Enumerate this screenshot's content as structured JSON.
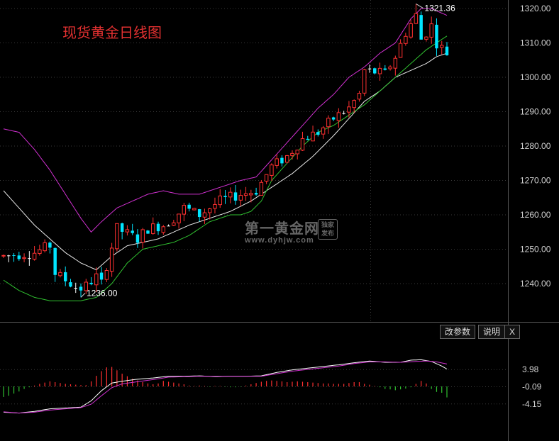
{
  "page": {
    "title": "现货黄金日线图",
    "buttons": {
      "params": "改参数",
      "help": "说明",
      "close": "X"
    },
    "watermark": {
      "name": "第一黄金网",
      "url": "www.dyhjw.com",
      "badge": "独家发布"
    }
  },
  "colors": {
    "background": "#000000",
    "up": "#ff3030",
    "down": "#00e5ff",
    "doji": "#ffffff",
    "boll_upper": "#d030d0",
    "boll_mid": "#e8e8e8",
    "boll_lower": "#30c030",
    "macd_dif": "#ffffff",
    "macd_dea": "#d030d0",
    "hist_pos": "#ff3030",
    "hist_neg": "#30c030",
    "grid": "#3a3a3a",
    "axis_text": "#d0d0d0"
  },
  "chart_data": [
    {
      "type": "candlestick",
      "title": "现货黄金日线图",
      "xlabel": "",
      "ylabel": "",
      "ylim": [
        1230,
        1322
      ],
      "yticks": [
        "1320.00",
        "1310.00",
        "1300.00",
        "1290.00",
        "1280.00",
        "1270.00",
        "1260.00",
        "1250.00",
        "1240.00"
      ],
      "annotations": [
        {
          "text": "1321.36",
          "x": 80,
          "y": 1321.36
        },
        {
          "text": "1236.00",
          "x": 15,
          "y": 1236.0
        }
      ],
      "anchors": [
        [
          0,
          1248
        ],
        [
          6,
          1249
        ],
        [
          9,
          1251
        ],
        [
          10,
          1243
        ],
        [
          13,
          1240
        ],
        [
          15,
          1238
        ],
        [
          18,
          1242
        ],
        [
          19,
          1240
        ],
        [
          22,
          1256
        ],
        [
          26,
          1253
        ],
        [
          28,
          1256
        ],
        [
          31,
          1257
        ],
        [
          33,
          1259
        ],
        [
          35,
          1262
        ],
        [
          38,
          1260
        ],
        [
          42,
          1264
        ],
        [
          46,
          1266
        ],
        [
          49,
          1267
        ],
        [
          52,
          1274
        ],
        [
          55,
          1277
        ],
        [
          58,
          1282
        ],
        [
          61,
          1284
        ],
        [
          64,
          1288
        ],
        [
          67,
          1291
        ],
        [
          69,
          1295
        ],
        [
          70,
          1302
        ],
        [
          74,
          1301
        ],
        [
          76,
          1306
        ],
        [
          78,
          1313
        ],
        [
          80,
          1318
        ],
        [
          81,
          1311
        ],
        [
          83,
          1315
        ],
        [
          84,
          1310
        ],
        [
          86,
          1307
        ]
      ],
      "candle_count": 87,
      "bollinger": {
        "upper": [
          [
            0,
            1285
          ],
          [
            3,
            1284
          ],
          [
            6,
            1279
          ],
          [
            9,
            1273
          ],
          [
            12,
            1266
          ],
          [
            15,
            1259
          ],
          [
            17,
            1255
          ],
          [
            19,
            1258
          ],
          [
            22,
            1262
          ],
          [
            25,
            1264
          ],
          [
            28,
            1266
          ],
          [
            31,
            1267
          ],
          [
            34,
            1266
          ],
          [
            38,
            1266
          ],
          [
            42,
            1268
          ],
          [
            46,
            1270
          ],
          [
            49,
            1271
          ],
          [
            52,
            1276
          ],
          [
            55,
            1281
          ],
          [
            58,
            1286
          ],
          [
            61,
            1291
          ],
          [
            64,
            1295
          ],
          [
            67,
            1300
          ],
          [
            70,
            1303
          ],
          [
            73,
            1307
          ],
          [
            76,
            1310
          ],
          [
            79,
            1317
          ],
          [
            81,
            1320
          ],
          [
            83,
            1320
          ],
          [
            86,
            1318
          ]
        ],
        "middle": [
          [
            0,
            1267
          ],
          [
            3,
            1262
          ],
          [
            6,
            1257
          ],
          [
            9,
            1253
          ],
          [
            12,
            1249
          ],
          [
            15,
            1246
          ],
          [
            18,
            1244
          ],
          [
            21,
            1248
          ],
          [
            24,
            1251
          ],
          [
            27,
            1252
          ],
          [
            30,
            1253
          ],
          [
            33,
            1255
          ],
          [
            36,
            1257
          ],
          [
            40,
            1259
          ],
          [
            44,
            1261
          ],
          [
            48,
            1264
          ],
          [
            52,
            1268
          ],
          [
            56,
            1272
          ],
          [
            60,
            1277
          ],
          [
            64,
            1283
          ],
          [
            67,
            1288
          ],
          [
            70,
            1293
          ],
          [
            73,
            1296
          ],
          [
            76,
            1300
          ],
          [
            79,
            1302
          ],
          [
            82,
            1304
          ],
          [
            84,
            1306
          ],
          [
            86,
            1307
          ]
        ],
        "lower": [
          [
            0,
            1241
          ],
          [
            3,
            1238
          ],
          [
            6,
            1236
          ],
          [
            9,
            1235
          ],
          [
            12,
            1235
          ],
          [
            15,
            1235
          ],
          [
            18,
            1236
          ],
          [
            21,
            1240
          ],
          [
            24,
            1246
          ],
          [
            27,
            1250
          ],
          [
            30,
            1251
          ],
          [
            33,
            1252
          ],
          [
            36,
            1254
          ],
          [
            40,
            1258
          ],
          [
            44,
            1260
          ],
          [
            46,
            1260
          ],
          [
            48,
            1261
          ],
          [
            50,
            1264
          ],
          [
            52,
            1270
          ],
          [
            55,
            1275
          ],
          [
            58,
            1280
          ],
          [
            61,
            1284
          ],
          [
            64,
            1286
          ],
          [
            67,
            1289
          ],
          [
            70,
            1292
          ],
          [
            73,
            1296
          ],
          [
            76,
            1300
          ],
          [
            79,
            1304
          ],
          [
            82,
            1308
          ],
          [
            84,
            1310
          ],
          [
            86,
            1312
          ]
        ]
      }
    },
    {
      "type": "macd",
      "yticks": [
        "3.98",
        "-0.09",
        "-4.15"
      ],
      "ylim": [
        -6.6,
        8.2
      ],
      "dif": [
        [
          0,
          -6.1
        ],
        [
          3,
          -6.3
        ],
        [
          6,
          -5.9
        ],
        [
          9,
          -5.3
        ],
        [
          12,
          -5.1
        ],
        [
          15,
          -4.9
        ],
        [
          17,
          -3.4
        ],
        [
          19,
          -1.0
        ],
        [
          21,
          0.8
        ],
        [
          23,
          1.2
        ],
        [
          26,
          1.7
        ],
        [
          29,
          2.0
        ],
        [
          32,
          2.4
        ],
        [
          35,
          2.4
        ],
        [
          38,
          2.5
        ],
        [
          41,
          2.3
        ],
        [
          44,
          2.4
        ],
        [
          47,
          2.4
        ],
        [
          50,
          2.5
        ],
        [
          53,
          3.3
        ],
        [
          56,
          3.9
        ],
        [
          59,
          4.3
        ],
        [
          62,
          4.7
        ],
        [
          65,
          5.1
        ],
        [
          68,
          5.6
        ],
        [
          71,
          6.0
        ],
        [
          74,
          5.7
        ],
        [
          77,
          5.7
        ],
        [
          79,
          6.2
        ],
        [
          81,
          6.3
        ],
        [
          83,
          5.9
        ],
        [
          85,
          4.8
        ],
        [
          86,
          4.1
        ]
      ],
      "dea": [
        [
          0,
          -6.0
        ],
        [
          3,
          -6.3
        ],
        [
          6,
          -6.1
        ],
        [
          9,
          -5.6
        ],
        [
          12,
          -5.3
        ],
        [
          15,
          -5.0
        ],
        [
          17,
          -4.2
        ],
        [
          19,
          -2.2
        ],
        [
          21,
          -0.3
        ],
        [
          23,
          0.6
        ],
        [
          26,
          1.1
        ],
        [
          29,
          1.6
        ],
        [
          32,
          2.2
        ],
        [
          35,
          2.3
        ],
        [
          38,
          2.4
        ],
        [
          41,
          2.4
        ],
        [
          44,
          2.4
        ],
        [
          47,
          2.4
        ],
        [
          50,
          2.4
        ],
        [
          53,
          3.0
        ],
        [
          56,
          3.6
        ],
        [
          59,
          4.0
        ],
        [
          62,
          4.4
        ],
        [
          65,
          4.8
        ],
        [
          68,
          5.4
        ],
        [
          71,
          5.8
        ],
        [
          74,
          5.8
        ],
        [
          77,
          5.7
        ],
        [
          80,
          5.9
        ],
        [
          82,
          6.0
        ],
        [
          84,
          5.8
        ],
        [
          86,
          5.3
        ]
      ],
      "hist": [
        -2.5,
        -2.2,
        -1.7,
        -1.2,
        -0.6,
        -0.2,
        0.2,
        0.6,
        0.9,
        1.2,
        1.0,
        0.8,
        0.6,
        0.5,
        0.4,
        0.3,
        0.3,
        1.2,
        2.5,
        3.6,
        4.5,
        4.6,
        3.8,
        3.0,
        2.4,
        1.8,
        1.4,
        1.0,
        0.7,
        0.5,
        0.7,
        1.3,
        1.1,
        0.9,
        0.7,
        0.5,
        0.2,
        0.1,
        0.2,
        0.1,
        -0.1,
        0.1,
        0.1,
        -0.1,
        -0.2,
        -0.2,
        -0.1,
        0.2,
        0.5,
        0.8,
        1.1,
        1.3,
        1.4,
        1.3,
        1.2,
        1.0,
        1.1,
        1.2,
        1.1,
        1.0,
        0.9,
        0.8,
        0.7,
        0.7,
        0.6,
        0.6,
        0.6,
        0.8,
        1.0,
        1.0,
        0.6,
        0.4,
        0.1,
        -0.2,
        -0.6,
        -0.7,
        -0.9,
        -0.7,
        -0.5,
        -0.2,
        0.6,
        1.3,
        0.7,
        -0.6,
        -1.3,
        -1.5,
        -2.6
      ]
    }
  ]
}
